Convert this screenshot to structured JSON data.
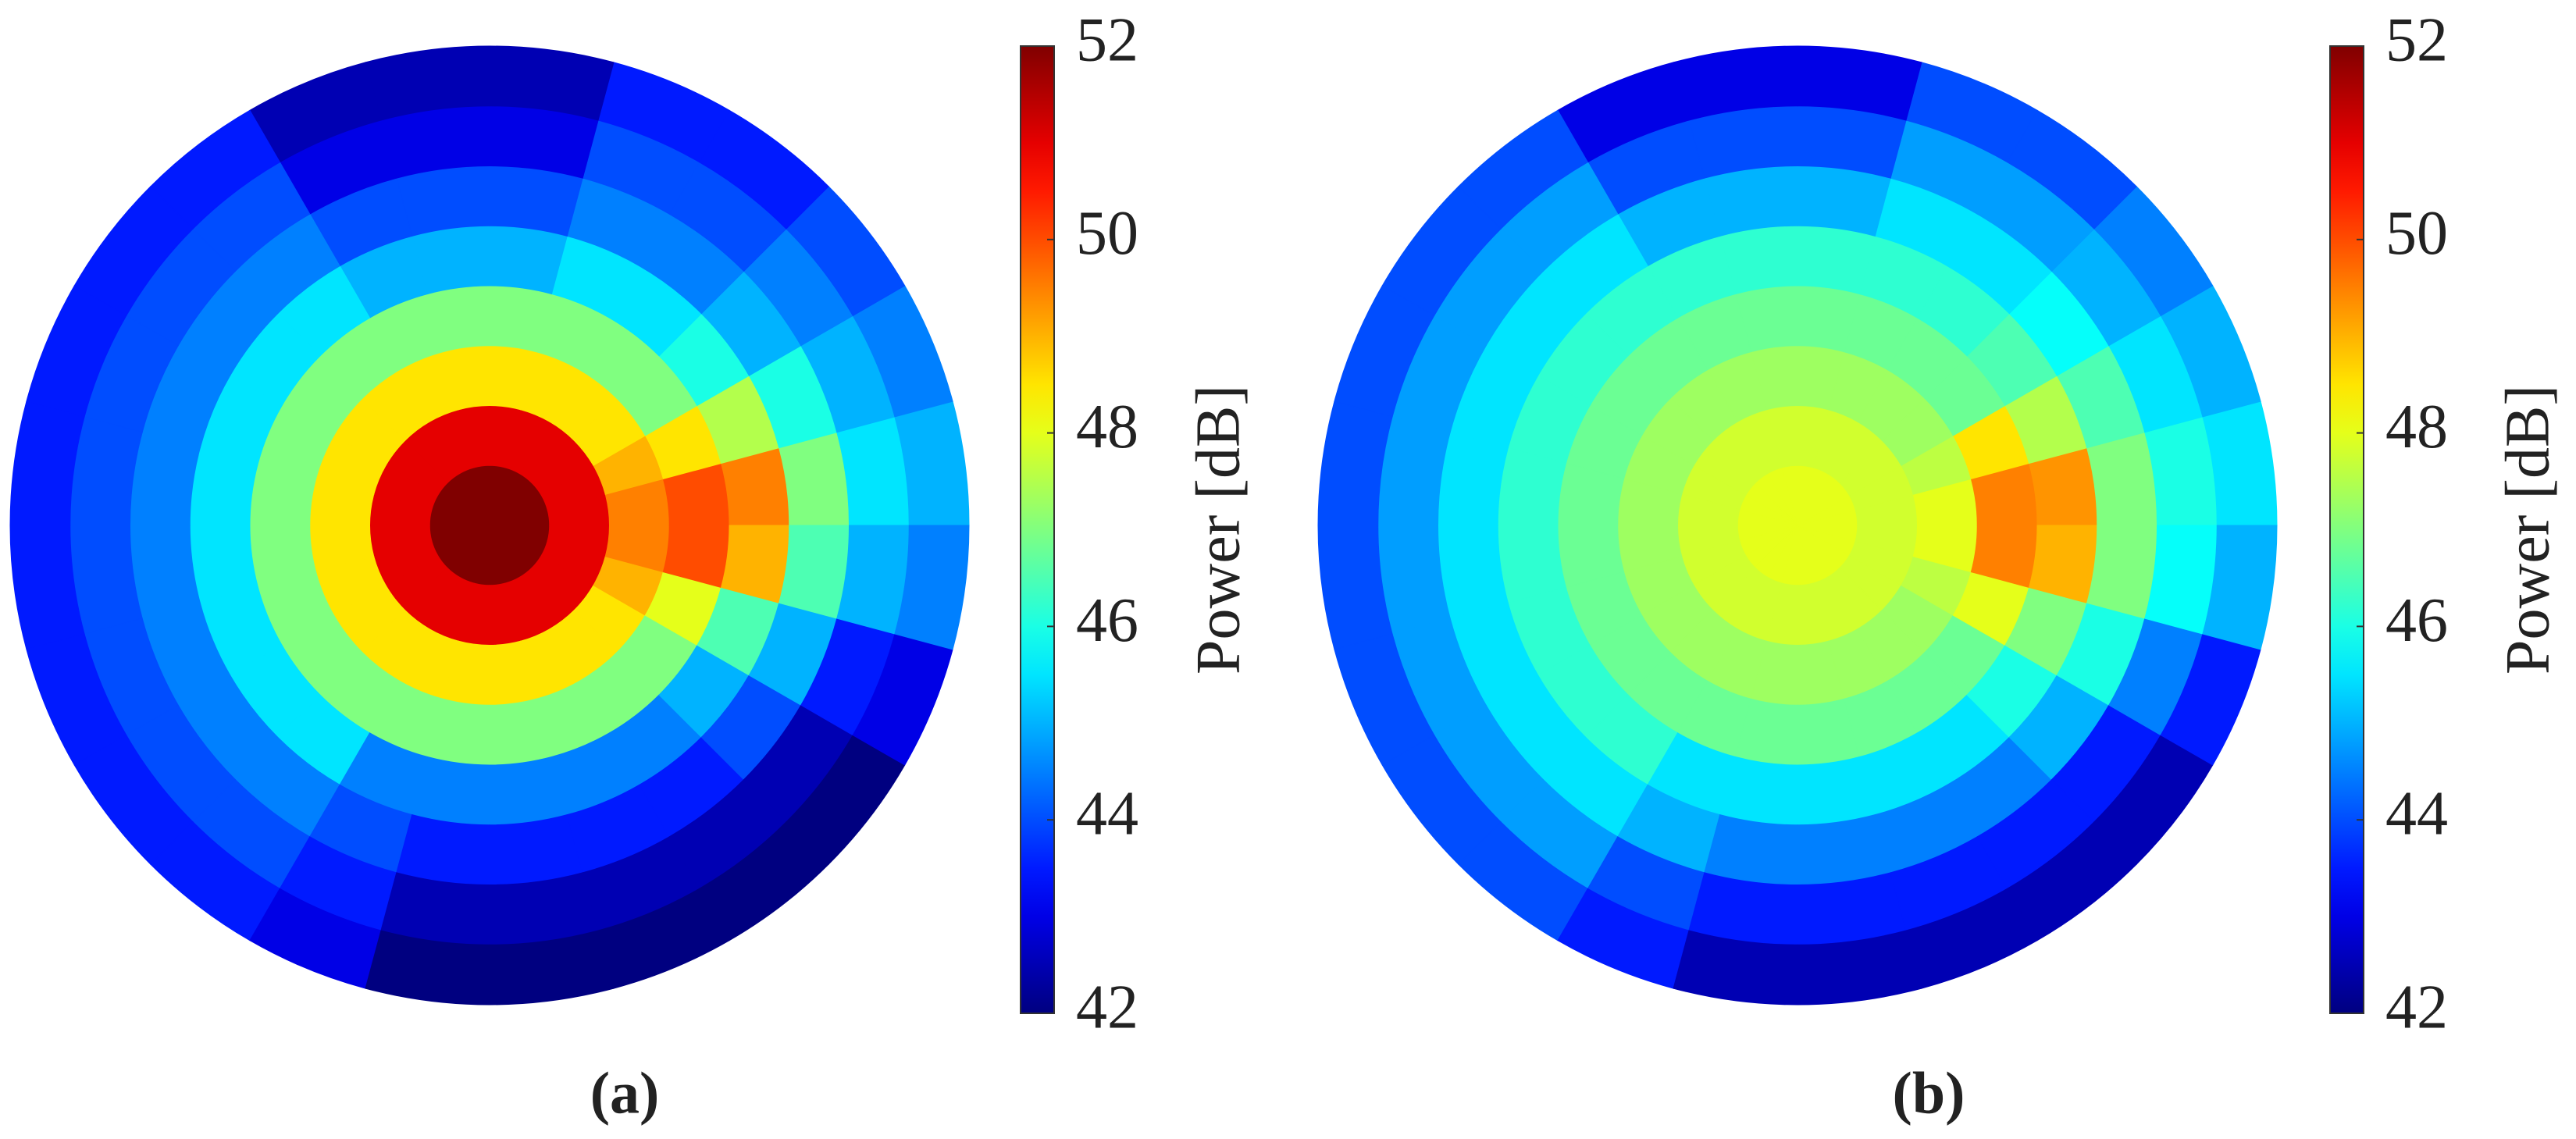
{
  "chart_data": [
    {
      "type": "polar_heatmap",
      "caption": "(a)",
      "colormap": "jet",
      "colorbar": {
        "label": "Power [dB]",
        "clim": [
          42,
          52
        ],
        "ticks": [
          42,
          44,
          46,
          48,
          50,
          52
        ]
      },
      "values": [
        [
          52,
          52,
          52,
          52,
          52,
          52,
          52,
          52,
          52,
          52,
          52,
          52,
          52,
          52,
          52,
          52,
          52,
          52,
          52,
          52,
          52,
          52,
          52,
          52
        ],
        [
          51,
          51,
          51,
          51,
          51,
          51,
          51,
          51,
          51,
          51,
          51,
          51,
          51,
          51,
          51,
          51,
          51,
          51,
          51,
          51,
          51,
          51,
          51,
          51
        ],
        [
          49.5,
          49,
          48.5,
          48.5,
          48.5,
          48.5,
          48.5,
          48.5,
          48.5,
          48.5,
          48.5,
          48.5,
          48.5,
          48.5,
          48.5,
          48.5,
          48.5,
          48.5,
          48.5,
          48.5,
          48.5,
          48.5,
          49,
          49.5
        ],
        [
          50,
          48.5,
          47,
          47,
          47,
          47,
          47,
          47,
          47,
          47,
          47,
          47,
          47,
          47,
          47,
          47,
          47,
          47,
          47,
          47,
          47,
          47,
          48,
          50
        ],
        [
          49.5,
          47.5,
          46,
          45.5,
          45.5,
          45,
          45,
          45,
          45.5,
          45.5,
          45.5,
          45.5,
          45.5,
          45.5,
          45.5,
          45.5,
          44.5,
          44.5,
          44.5,
          44.5,
          44.5,
          45,
          46.5,
          49
        ],
        [
          47,
          46,
          45,
          44.5,
          44.5,
          44,
          44,
          44,
          44.5,
          44.5,
          44.5,
          44.5,
          44.5,
          44.5,
          44.5,
          44.5,
          44,
          43.5,
          43.5,
          43.5,
          43.5,
          44,
          45,
          46.5
        ],
        [
          45.5,
          45,
          44.5,
          44,
          44,
          43,
          43,
          43,
          44,
          44,
          44,
          44,
          44,
          44,
          44,
          44,
          43.5,
          42.5,
          42.5,
          42.5,
          42.5,
          42.5,
          43.5,
          45
        ],
        [
          45,
          44.5,
          44,
          43.5,
          43.5,
          42.5,
          42.5,
          42.5,
          43.5,
          43.5,
          43.5,
          43.5,
          43.5,
          43.5,
          43.5,
          43.5,
          43,
          42,
          42,
          42,
          42,
          42,
          43,
          44.5
        ]
      ]
    },
    {
      "type": "polar_heatmap",
      "caption": "(b)",
      "colormap": "jet",
      "colorbar": {
        "label": "Power [dB]",
        "clim": [
          42,
          52
        ],
        "ticks": [
          42,
          44,
          46,
          48,
          50,
          52
        ]
      },
      "values": [
        [
          48,
          48,
          48,
          48,
          48,
          48,
          48,
          48,
          48,
          48,
          48,
          48,
          48,
          48,
          48,
          48,
          48,
          48,
          48,
          48,
          48,
          48,
          48,
          48
        ],
        [
          47.8,
          47.8,
          47.8,
          47.8,
          47.8,
          47.8,
          47.8,
          47.8,
          47.8,
          47.8,
          47.8,
          47.8,
          47.8,
          47.8,
          47.8,
          47.8,
          47.8,
          47.8,
          47.8,
          47.8,
          47.8,
          47.8,
          47.8,
          47.8
        ],
        [
          48,
          47.6,
          47.3,
          47.3,
          47.3,
          47.3,
          47.3,
          47.3,
          47.3,
          47.3,
          47.3,
          47.3,
          47.3,
          47.3,
          47.3,
          47.3,
          47.3,
          47.3,
          47.3,
          47.3,
          47.3,
          47.3,
          47.6,
          48
        ],
        [
          49.5,
          48.5,
          46.8,
          46.8,
          46.8,
          46.8,
          46.8,
          46.8,
          46.8,
          46.8,
          46.8,
          46.8,
          46.8,
          46.8,
          46.8,
          46.8,
          46.8,
          46.8,
          46.8,
          46.8,
          46.8,
          46.8,
          48,
          49.5
        ],
        [
          49.3,
          47.5,
          46.5,
          46.2,
          46.2,
          46.2,
          46.2,
          46.2,
          46.2,
          46.2,
          46.2,
          46.2,
          46.2,
          46.2,
          46.2,
          46.2,
          45.5,
          45.5,
          45.5,
          45.5,
          45.5,
          46,
          47,
          49
        ],
        [
          47,
          46.5,
          45.8,
          45.5,
          45.5,
          45,
          45,
          45,
          45.5,
          45.5,
          45.5,
          45.5,
          45.5,
          45.5,
          45.5,
          45.5,
          45,
          44.5,
          44.5,
          44.5,
          44.5,
          45,
          46,
          47
        ],
        [
          46,
          45.5,
          45,
          44.8,
          44.8,
          44,
          44,
          44,
          44.8,
          44.8,
          44.8,
          44.8,
          44.8,
          44.8,
          44.8,
          44.8,
          44,
          43.5,
          43.5,
          43.5,
          43.5,
          43.5,
          44.5,
          45.8
        ],
        [
          45.5,
          45,
          44.5,
          44,
          44,
          43,
          43,
          43,
          44,
          44,
          44,
          44,
          44,
          44,
          44,
          44,
          43.5,
          42.5,
          42.5,
          42.5,
          42.5,
          42.5,
          43.5,
          45
        ]
      ]
    }
  ]
}
